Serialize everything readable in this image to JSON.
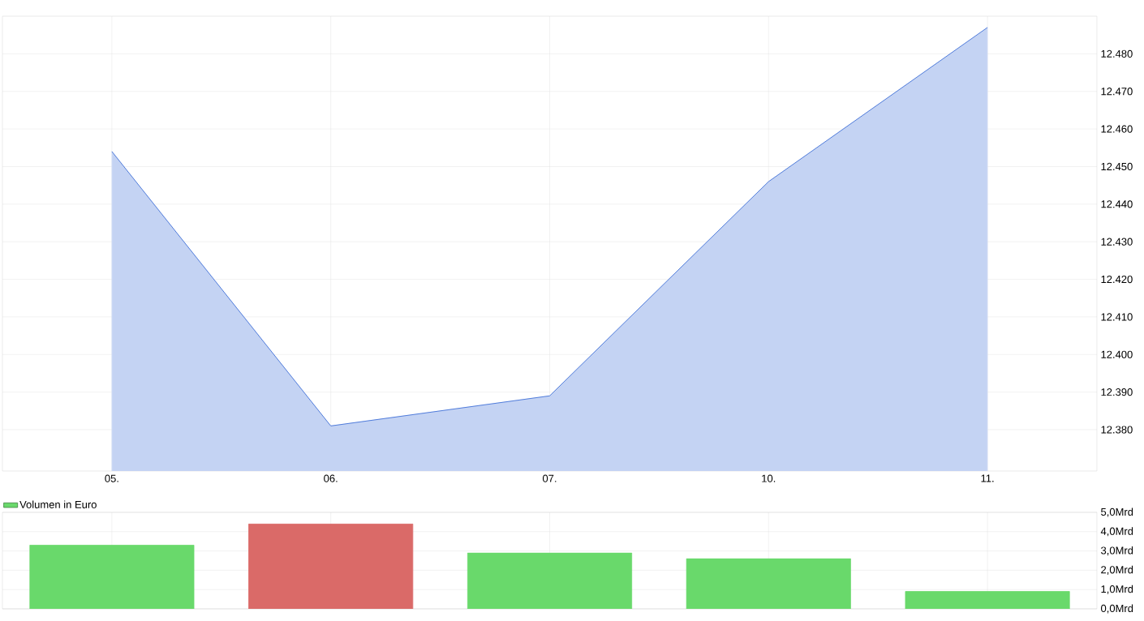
{
  "chart_data": [
    {
      "type": "area",
      "categories": [
        "05.",
        "06.",
        "07.",
        "10.",
        "11."
      ],
      "series": [
        {
          "color": "#2d62d3",
          "values": [
            12454,
            12381,
            12389,
            12446,
            12487
          ]
        }
      ],
      "ylim": [
        12369,
        12490
      ],
      "yticks": [
        {
          "value": 12380,
          "label": "12.380"
        },
        {
          "value": 12390,
          "label": "12.390"
        },
        {
          "value": 12400,
          "label": "12.400"
        },
        {
          "value": 12410,
          "label": "12.410"
        },
        {
          "value": 12420,
          "label": "12.420"
        },
        {
          "value": 12430,
          "label": "12.430"
        },
        {
          "value": 12440,
          "label": "12.440"
        },
        {
          "value": 12450,
          "label": "12.450"
        },
        {
          "value": 12460,
          "label": "12.460"
        },
        {
          "value": 12470,
          "label": "12.470"
        },
        {
          "value": 12480,
          "label": "12.480"
        }
      ],
      "grid": true
    },
    {
      "type": "bar",
      "categories": [
        "05.",
        "06.",
        "07.",
        "10.",
        "11."
      ],
      "series": [
        {
          "name": "Volumen in Euro",
          "color": "#69d96b",
          "colors": [
            "#69d96b",
            "#da6a68",
            "#69d96b",
            "#69d96b",
            "#69d96b"
          ],
          "values": [
            3.3,
            4.4,
            2.9,
            2.6,
            0.9
          ]
        }
      ],
      "ylim": [
        0,
        5
      ],
      "yticks": [
        {
          "value": 0,
          "label": "0,0Mrd"
        },
        {
          "value": 1,
          "label": "1,0Mrd"
        },
        {
          "value": 2,
          "label": "2,0Mrd"
        },
        {
          "value": 3,
          "label": "3,0Mrd"
        },
        {
          "value": 4,
          "label": "4,0Mrd"
        },
        {
          "value": 5,
          "label": "5,0Mrd"
        }
      ],
      "grid": true,
      "legend": "top left",
      "tick_labels": "y"
    }
  ]
}
